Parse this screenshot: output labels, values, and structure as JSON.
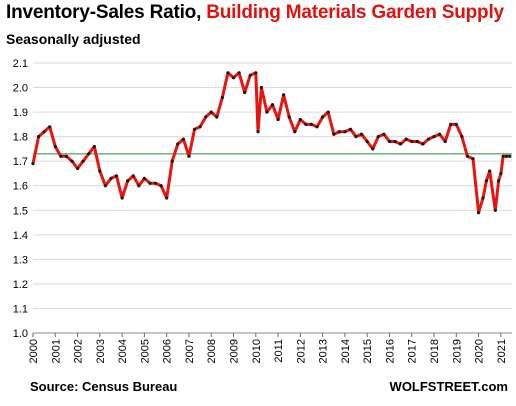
{
  "title_part1": "Inventory-Sales Ratio, ",
  "title_part2": "Building Materials Garden Supply",
  "subtitle": "Seasonally adjusted",
  "source": "Source: Census Bureau",
  "brand": "WOLFSTREET.com",
  "colors": {
    "line": "#e8140f",
    "marker": "#1a1a1a",
    "reference": "#2e8b3a",
    "grid": "#d9d9d9",
    "title_accent": "#e0120f"
  },
  "chart_data": {
    "type": "line",
    "title": "Inventory-Sales Ratio, Building Materials Garden Supply",
    "subtitle": "Seasonally adjusted",
    "x_ticks": [
      "2000",
      "2001",
      "2002",
      "2003",
      "2004",
      "2005",
      "2006",
      "2007",
      "2008",
      "2009",
      "2010",
      "2011",
      "2012",
      "2013",
      "2014",
      "2015",
      "2016",
      "2017",
      "2018",
      "2019",
      "2020",
      "2021"
    ],
    "y_ticks": [
      "1.0",
      "1.1",
      "1.2",
      "1.3",
      "1.4",
      "1.5",
      "1.6",
      "1.7",
      "1.8",
      "1.9",
      "2.0",
      "2.1"
    ],
    "ylim": [
      1.0,
      2.1
    ],
    "xlim": [
      2000.0,
      2021.5
    ],
    "grid": "horizontal",
    "reference_line": 1.73,
    "series": [
      {
        "x": [
          2000.0,
          2000.25,
          2000.5,
          2000.75,
          2001.0,
          2001.25,
          2001.5,
          2001.75,
          2002.0,
          2002.25,
          2002.5,
          2002.75,
          2003.0,
          2003.25,
          2003.5,
          2003.75,
          2004.0,
          2004.25,
          2004.5,
          2004.75,
          2005.0,
          2005.25,
          2005.5,
          2005.75,
          2006.0,
          2006.25,
          2006.5,
          2006.75,
          2007.0,
          2007.25,
          2007.5,
          2007.75,
          2008.0,
          2008.25,
          2008.5,
          2008.75,
          2009.0,
          2009.25,
          2009.5,
          2009.75,
          2010.0,
          2010.1,
          2010.25,
          2010.5,
          2010.75,
          2011.0,
          2011.25,
          2011.5,
          2011.75,
          2012.0,
          2012.25,
          2012.5,
          2012.75,
          2013.0,
          2013.25,
          2013.5,
          2013.75,
          2014.0,
          2014.25,
          2014.5,
          2014.75,
          2015.0,
          2015.25,
          2015.5,
          2015.75,
          2016.0,
          2016.25,
          2016.5,
          2016.75,
          2017.0,
          2017.25,
          2017.5,
          2017.75,
          2018.0,
          2018.25,
          2018.5,
          2018.75,
          2019.0,
          2019.25,
          2019.5,
          2019.75,
          2020.0,
          2020.2,
          2020.35,
          2020.5,
          2020.75,
          2020.9,
          2021.0,
          2021.1,
          2021.25,
          2021.4
        ],
        "y": [
          1.69,
          1.8,
          1.82,
          1.84,
          1.76,
          1.72,
          1.72,
          1.7,
          1.67,
          1.7,
          1.73,
          1.76,
          1.66,
          1.6,
          1.63,
          1.64,
          1.55,
          1.62,
          1.64,
          1.6,
          1.63,
          1.61,
          1.61,
          1.6,
          1.55,
          1.7,
          1.77,
          1.79,
          1.72,
          1.83,
          1.84,
          1.88,
          1.9,
          1.88,
          1.96,
          2.06,
          2.04,
          2.06,
          1.98,
          2.05,
          2.06,
          1.82,
          2.0,
          1.9,
          1.93,
          1.87,
          1.97,
          1.88,
          1.82,
          1.87,
          1.85,
          1.85,
          1.84,
          1.88,
          1.9,
          1.81,
          1.82,
          1.82,
          1.83,
          1.8,
          1.81,
          1.78,
          1.75,
          1.8,
          1.81,
          1.78,
          1.78,
          1.77,
          1.79,
          1.78,
          1.78,
          1.77,
          1.79,
          1.8,
          1.81,
          1.78,
          1.85,
          1.85,
          1.8,
          1.72,
          1.71,
          1.49,
          1.55,
          1.62,
          1.66,
          1.5,
          1.62,
          1.65,
          1.72,
          1.72,
          1.72
        ]
      }
    ]
  }
}
